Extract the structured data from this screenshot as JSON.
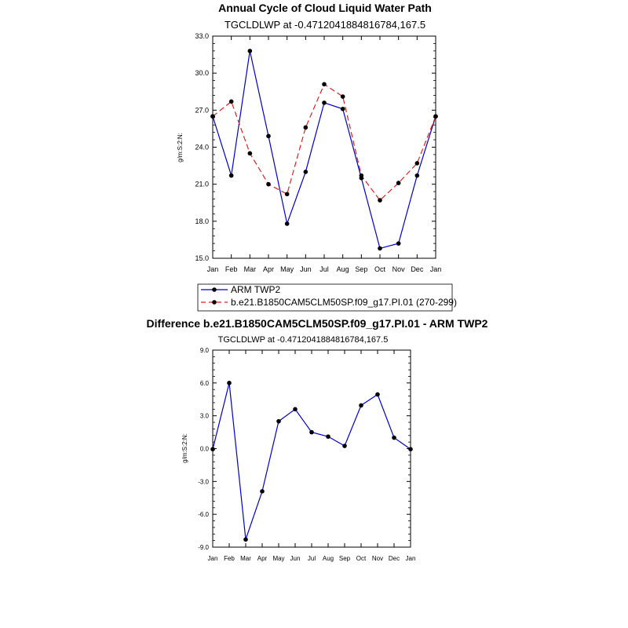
{
  "chart_data": [
    {
      "type": "line",
      "title": "Annual Cycle of Cloud Liquid Water Path",
      "subtitle": "TGCLDLWP at -0.4712041884816784,167.5",
      "xlabel": "",
      "ylabel": "g/m:S:2:N:",
      "categories": [
        "Jan",
        "Feb",
        "Mar",
        "Apr",
        "May",
        "Jun",
        "Jul",
        "Aug",
        "Sep",
        "Oct",
        "Nov",
        "Dec",
        "Jan"
      ],
      "ylim": [
        15.0,
        33.0
      ],
      "yticks": [
        "15.0",
        "18.0",
        "21.0",
        "24.0",
        "27.0",
        "30.0",
        "33.0"
      ],
      "legend": "bottom",
      "series": [
        {
          "name": "ARM TWP2",
          "color": "#0000cc",
          "dash": "solid",
          "values": [
            26.5,
            21.7,
            31.8,
            24.9,
            17.8,
            22.0,
            27.6,
            27.1,
            21.5,
            15.8,
            16.2,
            21.7,
            26.5
          ]
        },
        {
          "name": "b.e21.B1850CAM5CLM50SP.f09_g17.PI.01 (270-299)",
          "color": "#dd2222",
          "dash": "dashed",
          "values": [
            26.5,
            27.7,
            23.5,
            21.0,
            20.2,
            25.6,
            29.1,
            28.1,
            21.7,
            19.7,
            21.1,
            22.7,
            26.5
          ]
        }
      ]
    },
    {
      "type": "line",
      "title": "Difference b.e21.B1850CAM5CLM50SP.f09_g17.PI.01 - ARM TWP2",
      "subtitle": "TGCLDLWP at -0.4712041884816784,167.5",
      "xlabel": "",
      "ylabel": "g/m:S:2:N:",
      "categories": [
        "Jan",
        "Feb",
        "Mar",
        "Apr",
        "May",
        "Jun",
        "Jul",
        "Aug",
        "Sep",
        "Oct",
        "Nov",
        "Dec",
        "Jan"
      ],
      "ylim": [
        -9.0,
        9.0
      ],
      "yticks": [
        "-9.0",
        "-6.0",
        "-3.0",
        "0.0",
        "3.0",
        "6.0",
        "9.0"
      ],
      "series": [
        {
          "color": "#0000cc",
          "dash": "solid",
          "values": [
            -0.05,
            6.0,
            -8.3,
            -3.9,
            2.5,
            3.6,
            1.5,
            1.1,
            0.25,
            3.95,
            4.95,
            1.0,
            -0.05
          ]
        }
      ]
    }
  ]
}
